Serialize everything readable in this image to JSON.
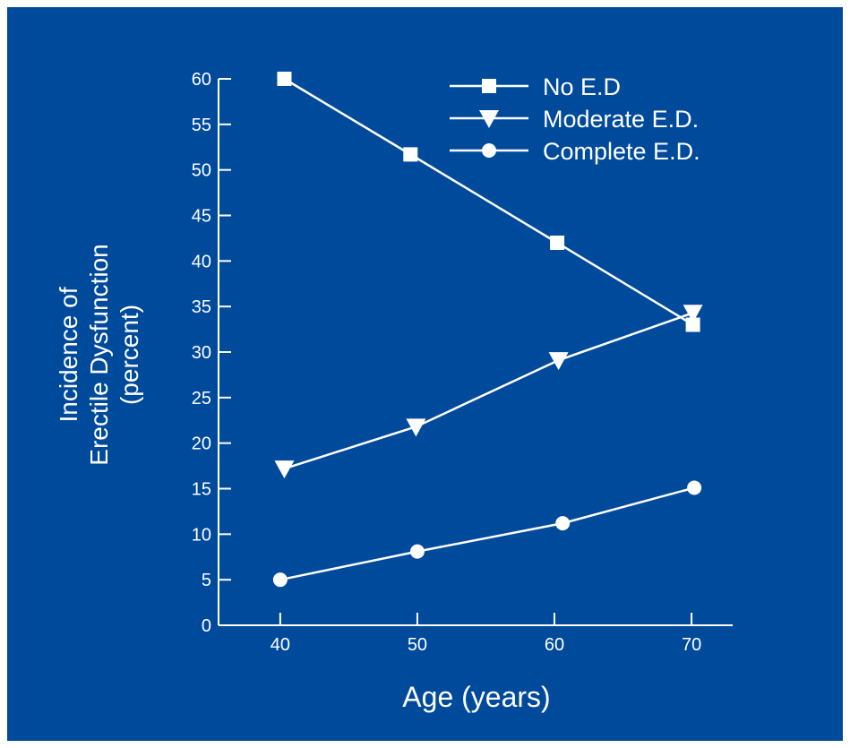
{
  "chart_data": {
    "type": "line",
    "title": "",
    "xlabel": "Age (years)",
    "ylabel_lines": [
      "Incidence of",
      "Erectile Dysfunction",
      "(percent)"
    ],
    "x": [
      40,
      50,
      60,
      70
    ],
    "x_ticks": [
      40,
      50,
      60,
      70
    ],
    "y_ticks": [
      0,
      5,
      10,
      15,
      20,
      25,
      30,
      35,
      40,
      45,
      50,
      55,
      60
    ],
    "xlim": [
      35.5,
      73
    ],
    "ylim": [
      0,
      60
    ],
    "grid": false,
    "legend_position": "top-right",
    "series": [
      {
        "name": "No E.D",
        "marker": "square",
        "x": [
          40.3,
          49.5,
          60.2,
          70.1
        ],
        "values": [
          60,
          51.7,
          42,
          33
        ]
      },
      {
        "name": "Moderate E.D.",
        "marker": "triangle-down",
        "x": [
          40.3,
          49.9,
          60.3,
          70.1
        ],
        "values": [
          17.2,
          21.8,
          29.1,
          34.3
        ]
      },
      {
        "name": "Complete E.D.",
        "marker": "circle",
        "x": [
          40,
          50,
          60.6,
          70.2
        ],
        "values": [
          5,
          8.1,
          11.2,
          15.1
        ]
      }
    ],
    "colors": {
      "background": "#004a9c",
      "foreground": "#ffffff"
    }
  }
}
